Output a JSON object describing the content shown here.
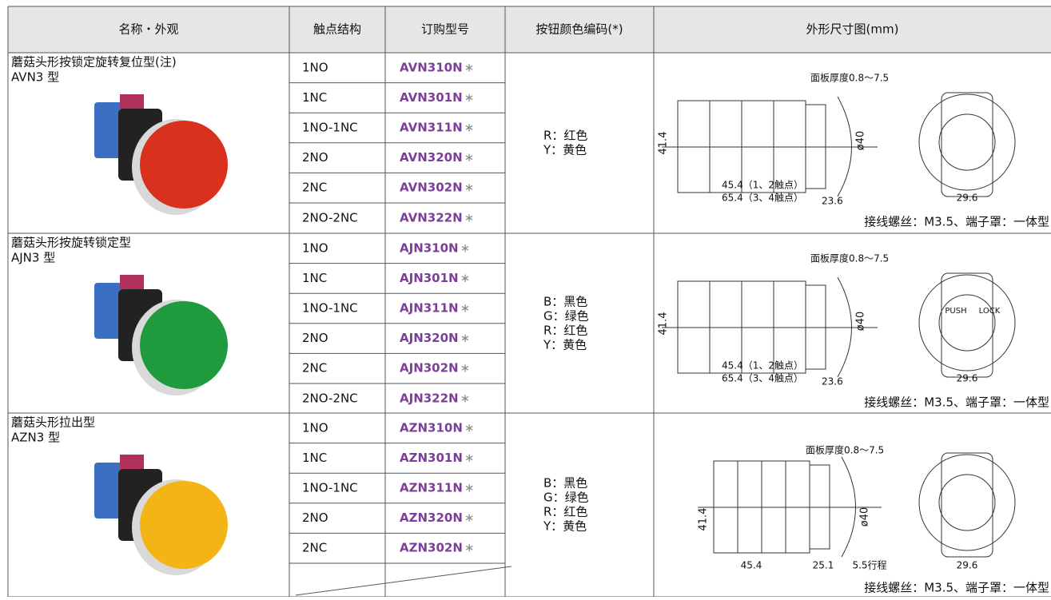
{
  "header": [
    "名称・外观",
    "触点结构",
    "订购型号",
    "按钮颜色编码(*)",
    "外形尺寸图(mm)"
  ],
  "model_suffix": "∗",
  "groups": [
    {
      "name": "蘑菇头形按锁定旋转复位型(注)",
      "model": "AVN3 型",
      "button_color": "#d8321e",
      "rows": [
        [
          "1NO",
          "AVN310N"
        ],
        [
          "1NC",
          "AVN301N"
        ],
        [
          "1NO-1NC",
          "AVN311N"
        ],
        [
          "2NO",
          "AVN320N"
        ],
        [
          "2NC",
          "AVN302N"
        ],
        [
          "2NO-2NC",
          "AVN322N"
        ]
      ],
      "colors": [
        "R：红色",
        "Y：黄色"
      ],
      "drawing": [
        "面板厚度0.8～7.5",
        "41.4",
        "ø40",
        "45.4（1、2触点）",
        "65.4（3、4触点）",
        "23.6",
        "29.6"
      ],
      "note": "接线螺丝：M3.5、端子罩：一体型"
    },
    {
      "name": "蘑菇头形按旋转锁定型",
      "model": "AJN3 型",
      "button_color": "#1f9a3c",
      "rows": [
        [
          "1NO",
          "AJN310N"
        ],
        [
          "1NC",
          "AJN301N"
        ],
        [
          "1NO-1NC",
          "AJN311N"
        ],
        [
          "2NO",
          "AJN320N"
        ],
        [
          "2NC",
          "AJN302N"
        ],
        [
          "2NO-2NC",
          "AJN322N"
        ]
      ],
      "colors": [
        "B：黑色",
        "G：绿色",
        "R：红色",
        "Y：黄色"
      ],
      "drawing": [
        "面板厚度0.8～7.5",
        "41.4",
        "ø40",
        "45.4（1、2触点）",
        "65.4（3、4触点）",
        "23.6",
        "29.6",
        "PUSH",
        "LOCK"
      ],
      "note": "接线螺丝：M3.5、端子罩：一体型"
    },
    {
      "name": "蘑菇头形拉出型",
      "model": "AZN3 型",
      "button_color": "#f2b515",
      "rows": [
        [
          "1NO",
          "AZN310N"
        ],
        [
          "1NC",
          "AZN301N"
        ],
        [
          "1NO-1NC",
          "AZN311N"
        ],
        [
          "2NO",
          "AZN320N"
        ],
        [
          "2NC",
          "AZN302N"
        ]
      ],
      "colors": [
        "B：黑色",
        "G：绿色",
        "R：红色",
        "Y：黄色"
      ],
      "drawing": [
        "面板厚度0.8～7.5",
        "41.4",
        "ø40",
        "45.4",
        "25.1",
        "5.5行程",
        "29.6"
      ],
      "note": "接线螺丝：M3.5、端子罩：一体型"
    }
  ]
}
